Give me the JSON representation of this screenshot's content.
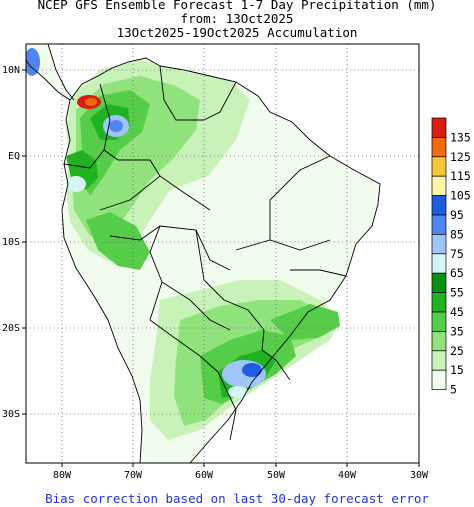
{
  "title": {
    "line1": "NCEP GFS Ensemble Forecast 1-7 Day Precipitation (mm)",
    "line2": "from: 13Oct2025",
    "line3": "13Oct2025-19Oct2025 Accumulation"
  },
  "map": {
    "lon_range": [
      -85,
      -30
    ],
    "lat_range": [
      -36,
      13
    ],
    "lon_ticks": [
      "80W",
      "70W",
      "60W",
      "50W",
      "40W",
      "30W"
    ],
    "lat_ticks": [
      "10N",
      "EQ",
      "10S",
      "20S",
      "30S"
    ],
    "grid": "dotted"
  },
  "legend": {
    "bins": [
      {
        "label": "135",
        "color": "#d81e12"
      },
      {
        "label": "125",
        "color": "#f06b10"
      },
      {
        "label": "115",
        "color": "#f5c63c"
      },
      {
        "label": "105",
        "color": "#fff5a8"
      },
      {
        "label": "95",
        "color": "#1e5ce0"
      },
      {
        "label": "85",
        "color": "#4f85f0"
      },
      {
        "label": "75",
        "color": "#9fc6fb"
      },
      {
        "label": "65",
        "color": "#d6f4f4"
      },
      {
        "label": "55",
        "color": "#0a8f10"
      },
      {
        "label": "45",
        "color": "#1fb41f"
      },
      {
        "label": "35",
        "color": "#55cd48"
      },
      {
        "label": "25",
        "color": "#90e27c"
      },
      {
        "label": "15",
        "color": "#c8f2b8"
      },
      {
        "label": "5",
        "color": "#f2fcee"
      }
    ]
  },
  "footer": "Bias correction based on last 30-day forecast error"
}
